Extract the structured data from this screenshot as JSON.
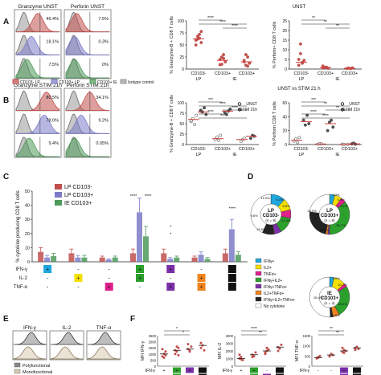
{
  "panel_letters": [
    "A",
    "B",
    "C",
    "D",
    "E",
    "F"
  ],
  "hist": {
    "A_titles": [
      "Granzyme UNST",
      "Perforin UNST"
    ],
    "A_gz_pct": [
      "46.4%",
      "18.1%",
      "7.5%"
    ],
    "A_pf_pct": [
      "7.5%",
      "0.3%",
      "0%"
    ],
    "B_titles": [
      "Granzyme STIM 21h",
      "Perforin STIM 21h"
    ],
    "B_gz_pct": [
      "80.5%",
      "78.0%",
      "9.4%"
    ],
    "B_pf_pct": [
      "34.1%",
      "9.2%",
      "0.05%"
    ],
    "legend": [
      "CD103- LP",
      "CD103+ LP",
      "CD103+ IE",
      "Isotype control"
    ]
  },
  "colors": {
    "cd103neg": "#c0504d",
    "cd103pos_lp": "#7b7bc8",
    "ie": "#4e9a5a",
    "isotype": "#999999",
    "red_line": "#d63b3b"
  },
  "chart_data": [
    {
      "type": "scatter",
      "id": "A_granzyme",
      "header": "UNST",
      "ylabel": "% Granzyme-B + CD8 T cells",
      "ylim": [
        0,
        100
      ],
      "yticks": [
        0,
        25,
        50,
        75,
        100
      ],
      "categories": [
        "CD103-",
        "CD103+",
        "CD103+"
      ],
      "groups": [
        "LP",
        "IE"
      ],
      "sig": [
        "****",
        "****",
        "****"
      ],
      "series": [
        {
          "values": [
            [
              1,
              60
            ],
            [
              1,
              68
            ],
            [
              1,
              72
            ],
            [
              1,
              55
            ],
            [
              1,
              50
            ],
            [
              1,
              62
            ],
            [
              1,
              64
            ],
            [
              1,
              78
            ]
          ]
        },
        {
          "values": [
            [
              2,
              20
            ],
            [
              2,
              10
            ],
            [
              2,
              22
            ],
            [
              2,
              15
            ],
            [
              2,
              9
            ],
            [
              2,
              25
            ],
            [
              2,
              30
            ]
          ]
        },
        {
          "values": [
            [
              3,
              18
            ],
            [
              3,
              8
            ],
            [
              3,
              25
            ],
            [
              3,
              12
            ],
            [
              3,
              15
            ],
            [
              3,
              30
            ],
            [
              3,
              6
            ]
          ]
        }
      ],
      "medians": [
        63,
        18,
        15
      ]
    },
    {
      "type": "scatter",
      "id": "A_perforin",
      "ylabel": "% Perforin+ CD8 T cells",
      "ylim": [
        0,
        25
      ],
      "yticks": [
        0,
        5,
        10,
        15,
        20,
        25
      ],
      "categories": [
        "CD103-",
        "CD103+",
        "CD103+"
      ],
      "groups": [
        "LP",
        "IE"
      ],
      "sig": [
        "**",
        "**",
        "**"
      ],
      "series": [
        {
          "values": [
            [
              1,
              5
            ],
            [
              1,
              8
            ],
            [
              1,
              3.5
            ],
            [
              1,
              4.5
            ],
            [
              1,
              2
            ],
            [
              1,
              13
            ],
            [
              1,
              3
            ]
          ]
        },
        {
          "values": [
            [
              2,
              0.5
            ],
            [
              2,
              0.8
            ],
            [
              2,
              1
            ],
            [
              2,
              0.4
            ],
            [
              2,
              1.6
            ]
          ]
        },
        {
          "values": [
            [
              3,
              0.3
            ],
            [
              3,
              0.5
            ],
            [
              3,
              0.2
            ],
            [
              3,
              0.6
            ]
          ]
        }
      ],
      "medians": [
        3.5,
        0.8,
        0.4
      ]
    },
    {
      "type": "scatter",
      "id": "B_granzyme",
      "header": "UNST vs STIM 21 h",
      "ylabel": "% Granzyme-B + CD8 T cells",
      "ylim": [
        0,
        100
      ],
      "yticks": [
        0,
        25,
        50,
        75,
        100
      ],
      "categories": [
        "CD103-",
        "CD103+",
        "CD103+"
      ],
      "groups": [
        "LP",
        "IE"
      ],
      "sig": [
        "***",
        "****",
        "****",
        "****",
        "***"
      ],
      "series": [
        {
          "name": "UNST",
          "values": [
            [
              1,
              55
            ],
            [
              1,
              62
            ],
            [
              1,
              48
            ],
            [
              1,
              70
            ],
            [
              1,
              58
            ],
            [
              2,
              18
            ],
            [
              2,
              10
            ],
            [
              2,
              22
            ],
            [
              2,
              12
            ],
            [
              3,
              8
            ],
            [
              3,
              12
            ],
            [
              3,
              15
            ]
          ]
        },
        {
          "name": "STIM 21h",
          "values": [
            [
              1,
              82
            ],
            [
              1,
              78
            ],
            [
              1,
              88
            ],
            [
              1,
              72
            ],
            [
              1,
              80
            ],
            [
              2,
              72
            ],
            [
              2,
              80
            ],
            [
              2,
              85
            ],
            [
              2,
              76
            ],
            [
              3,
              15
            ],
            [
              3,
              22
            ],
            [
              3,
              20
            ]
          ]
        }
      ],
      "medians": [
        60,
        78,
        14,
        80,
        12,
        20
      ]
    },
    {
      "type": "scatter",
      "id": "B_perforin",
      "ylabel": "% Perforin CD8 T cells",
      "ylim": [
        0,
        60
      ],
      "yticks": [
        0,
        20,
        40,
        60
      ],
      "categories": [
        "CD103-",
        "CD103+",
        "CD103+"
      ],
      "groups": [
        "LP",
        "IE"
      ],
      "sig": [
        "***",
        "**",
        "**",
        "****",
        "****"
      ],
      "series": [
        {
          "name": "UNST",
          "values": [
            [
              1,
              5
            ],
            [
              1,
              8
            ],
            [
              1,
              3
            ],
            [
              1,
              10
            ],
            [
              2,
              0.5
            ],
            [
              2,
              1
            ],
            [
              2,
              0.8
            ],
            [
              3,
              0.3
            ],
            [
              3,
              0.5
            ],
            [
              3,
              0.2
            ]
          ]
        },
        {
          "name": "STIM 21h",
          "values": [
            [
              1,
              35
            ],
            [
              1,
              28
            ],
            [
              1,
              42
            ],
            [
              1,
              30
            ],
            [
              2,
              20
            ],
            [
              2,
              32
            ],
            [
              2,
              35
            ],
            [
              2,
              25
            ],
            [
              3,
              1
            ],
            [
              3,
              2
            ],
            [
              3,
              0.5
            ]
          ]
        }
      ],
      "medians": [
        6,
        33,
        0.8,
        30,
        0.3,
        1
      ]
    },
    {
      "type": "bar",
      "id": "C_cytokine",
      "ylabel": "% cytokine producing CD8 T cells",
      "ylim": [
        0,
        50
      ],
      "yticks": [
        0,
        10,
        20,
        30,
        40,
        50
      ],
      "legend": [
        "LP CD103-",
        "LP CD103+",
        "IE CD103+"
      ],
      "series": [
        {
          "name": "LP CD103-",
          "values": [
            7,
            6,
            3,
            6,
            6,
            3,
            6
          ],
          "err": [
            3,
            3,
            1,
            3,
            3,
            1,
            3
          ]
        },
        {
          "name": "LP CD103+",
          "values": [
            3,
            3,
            1.5,
            35,
            2,
            5,
            23
          ],
          "err": [
            1.5,
            1.5,
            0.5,
            10,
            1,
            2,
            7
          ]
        },
        {
          "name": "IE CD103+",
          "values": [
            4,
            3,
            3,
            18,
            3,
            2,
            5
          ],
          "err": [
            2,
            1.5,
            1,
            7,
            1,
            1,
            2
          ]
        }
      ],
      "row_labels": [
        "IFN-γ",
        "IL-2",
        "TNF-α"
      ],
      "grid": [
        [
          "+",
          "-",
          "-",
          "+",
          "+",
          "-",
          "+"
        ],
        [
          "-",
          "+",
          "-",
          "+",
          "-",
          "+",
          "+"
        ],
        [
          "-",
          "-",
          "+",
          "-",
          "+",
          "+",
          "+"
        ]
      ],
      "grid_colors": [
        "#1ea6dd",
        "#f5e000",
        "#e0208a",
        "#2ca02c",
        "#7b2fa8",
        "#f0831e",
        "#111111"
      ],
      "sig": [
        "****",
        "****",
        "*",
        "*",
        "****"
      ]
    },
    {
      "type": "pie",
      "id": "D_pies",
      "pies": [
        {
          "title": "LP CD103-",
          "n": "(n = 9)",
          "slices": [
            11.9,
            9.4,
            6.8,
            13.4,
            5.5,
            0.4,
            9.6,
            43.0
          ]
        },
        {
          "title": "LP CD103+",
          "n": "(n = 9)",
          "slices": [
            4.3,
            5.9,
            4.1,
            35.7,
            1.4,
            1.7,
            24.0,
            22.9
          ]
        },
        {
          "title": "IE CD103+",
          "n": "(n = 4)",
          "slices": [
            4.0,
            10.7,
            3.0,
            28.2,
            0.1,
            5.9,
            2.4,
            55.4
          ]
        }
      ],
      "pct_labels": [
        [
          "11.9%",
          "9.4%",
          "6.8%",
          "13.4%",
          "43.0%",
          "9.6%"
        ],
        [
          "4.3%",
          "5.9%",
          "4.1%",
          "35.7%",
          "22.9%",
          "24.0%"
        ],
        [
          "4.0%",
          "10.7%",
          "28.2%",
          "55.4%",
          "5.9%"
        ]
      ],
      "legend": [
        "IFNγ+",
        "IL2+",
        "TNFα+",
        "IFNγ+IL2+",
        "IFNγ+TNFα+",
        "IL2+TNFα+",
        "IFNγ+IL2+TNFα+",
        "No cytokine"
      ],
      "colors": [
        "#1ea6dd",
        "#f5e000",
        "#e0208a",
        "#2ca02c",
        "#7b2fa8",
        "#f0831e",
        "#222222",
        "#ffffff"
      ]
    },
    {
      "type": "scatter",
      "id": "F_mfi",
      "panels": [
        {
          "ylabel": "MFI IFN-γ",
          "ylim": [
            0,
            2500
          ],
          "yticks": [
            "2500",
            "2000",
            "1500",
            "1000",
            "500",
            "0"
          ],
          "sig": [
            "*",
            "*"
          ],
          "series": [
            [
              800,
              1000,
              1200,
              1400,
              700,
              900
            ],
            [
              1000,
              1200,
              1500,
              1300,
              1600,
              900
            ],
            [
              1400,
              1200,
              1600,
              1800,
              1300
            ],
            [
              1500,
              1700,
              1300,
              1900
            ]
          ]
        },
        {
          "ylabel": "MFI IL-2",
          "ylim": [
            0,
            4000
          ],
          "yticks": [
            "4000",
            "3000",
            "2000",
            "1000",
            "0"
          ],
          "sig": [
            "****",
            "**"
          ],
          "series": [
            [
              1000,
              1200,
              800,
              1500,
              900
            ],
            [
              1500,
              1300,
              1800,
              1200
            ],
            [
              1800,
              2000,
              2200,
              1600,
              2400
            ],
            [
              2500,
              2300,
              2800,
              2000
            ]
          ]
        },
        {
          "ylabel": "MFI TNF-α",
          "ylim": [
            0,
            1500
          ],
          "yticks": [
            "1500",
            "1000",
            "500",
            "0"
          ],
          "sig": [
            "**",
            "**"
          ],
          "series": [
            [
              400,
              450,
              500,
              380,
              420
            ],
            [
              500,
              600,
              550,
              480
            ],
            [
              700,
              800,
              750,
              900,
              650
            ],
            [
              800,
              950,
              850,
              900
            ]
          ]
        }
      ],
      "row_labels": [
        "IFN-γ",
        "IL-2",
        "TNF-α"
      ]
    }
  ],
  "E": {
    "titles": [
      "IFN-γ",
      "IL-2",
      "TNF-α"
    ],
    "legend": [
      "Polyfunctional",
      "Monofunctional"
    ]
  },
  "A_axis": {
    "groups": [
      "LP",
      "IE"
    ]
  }
}
